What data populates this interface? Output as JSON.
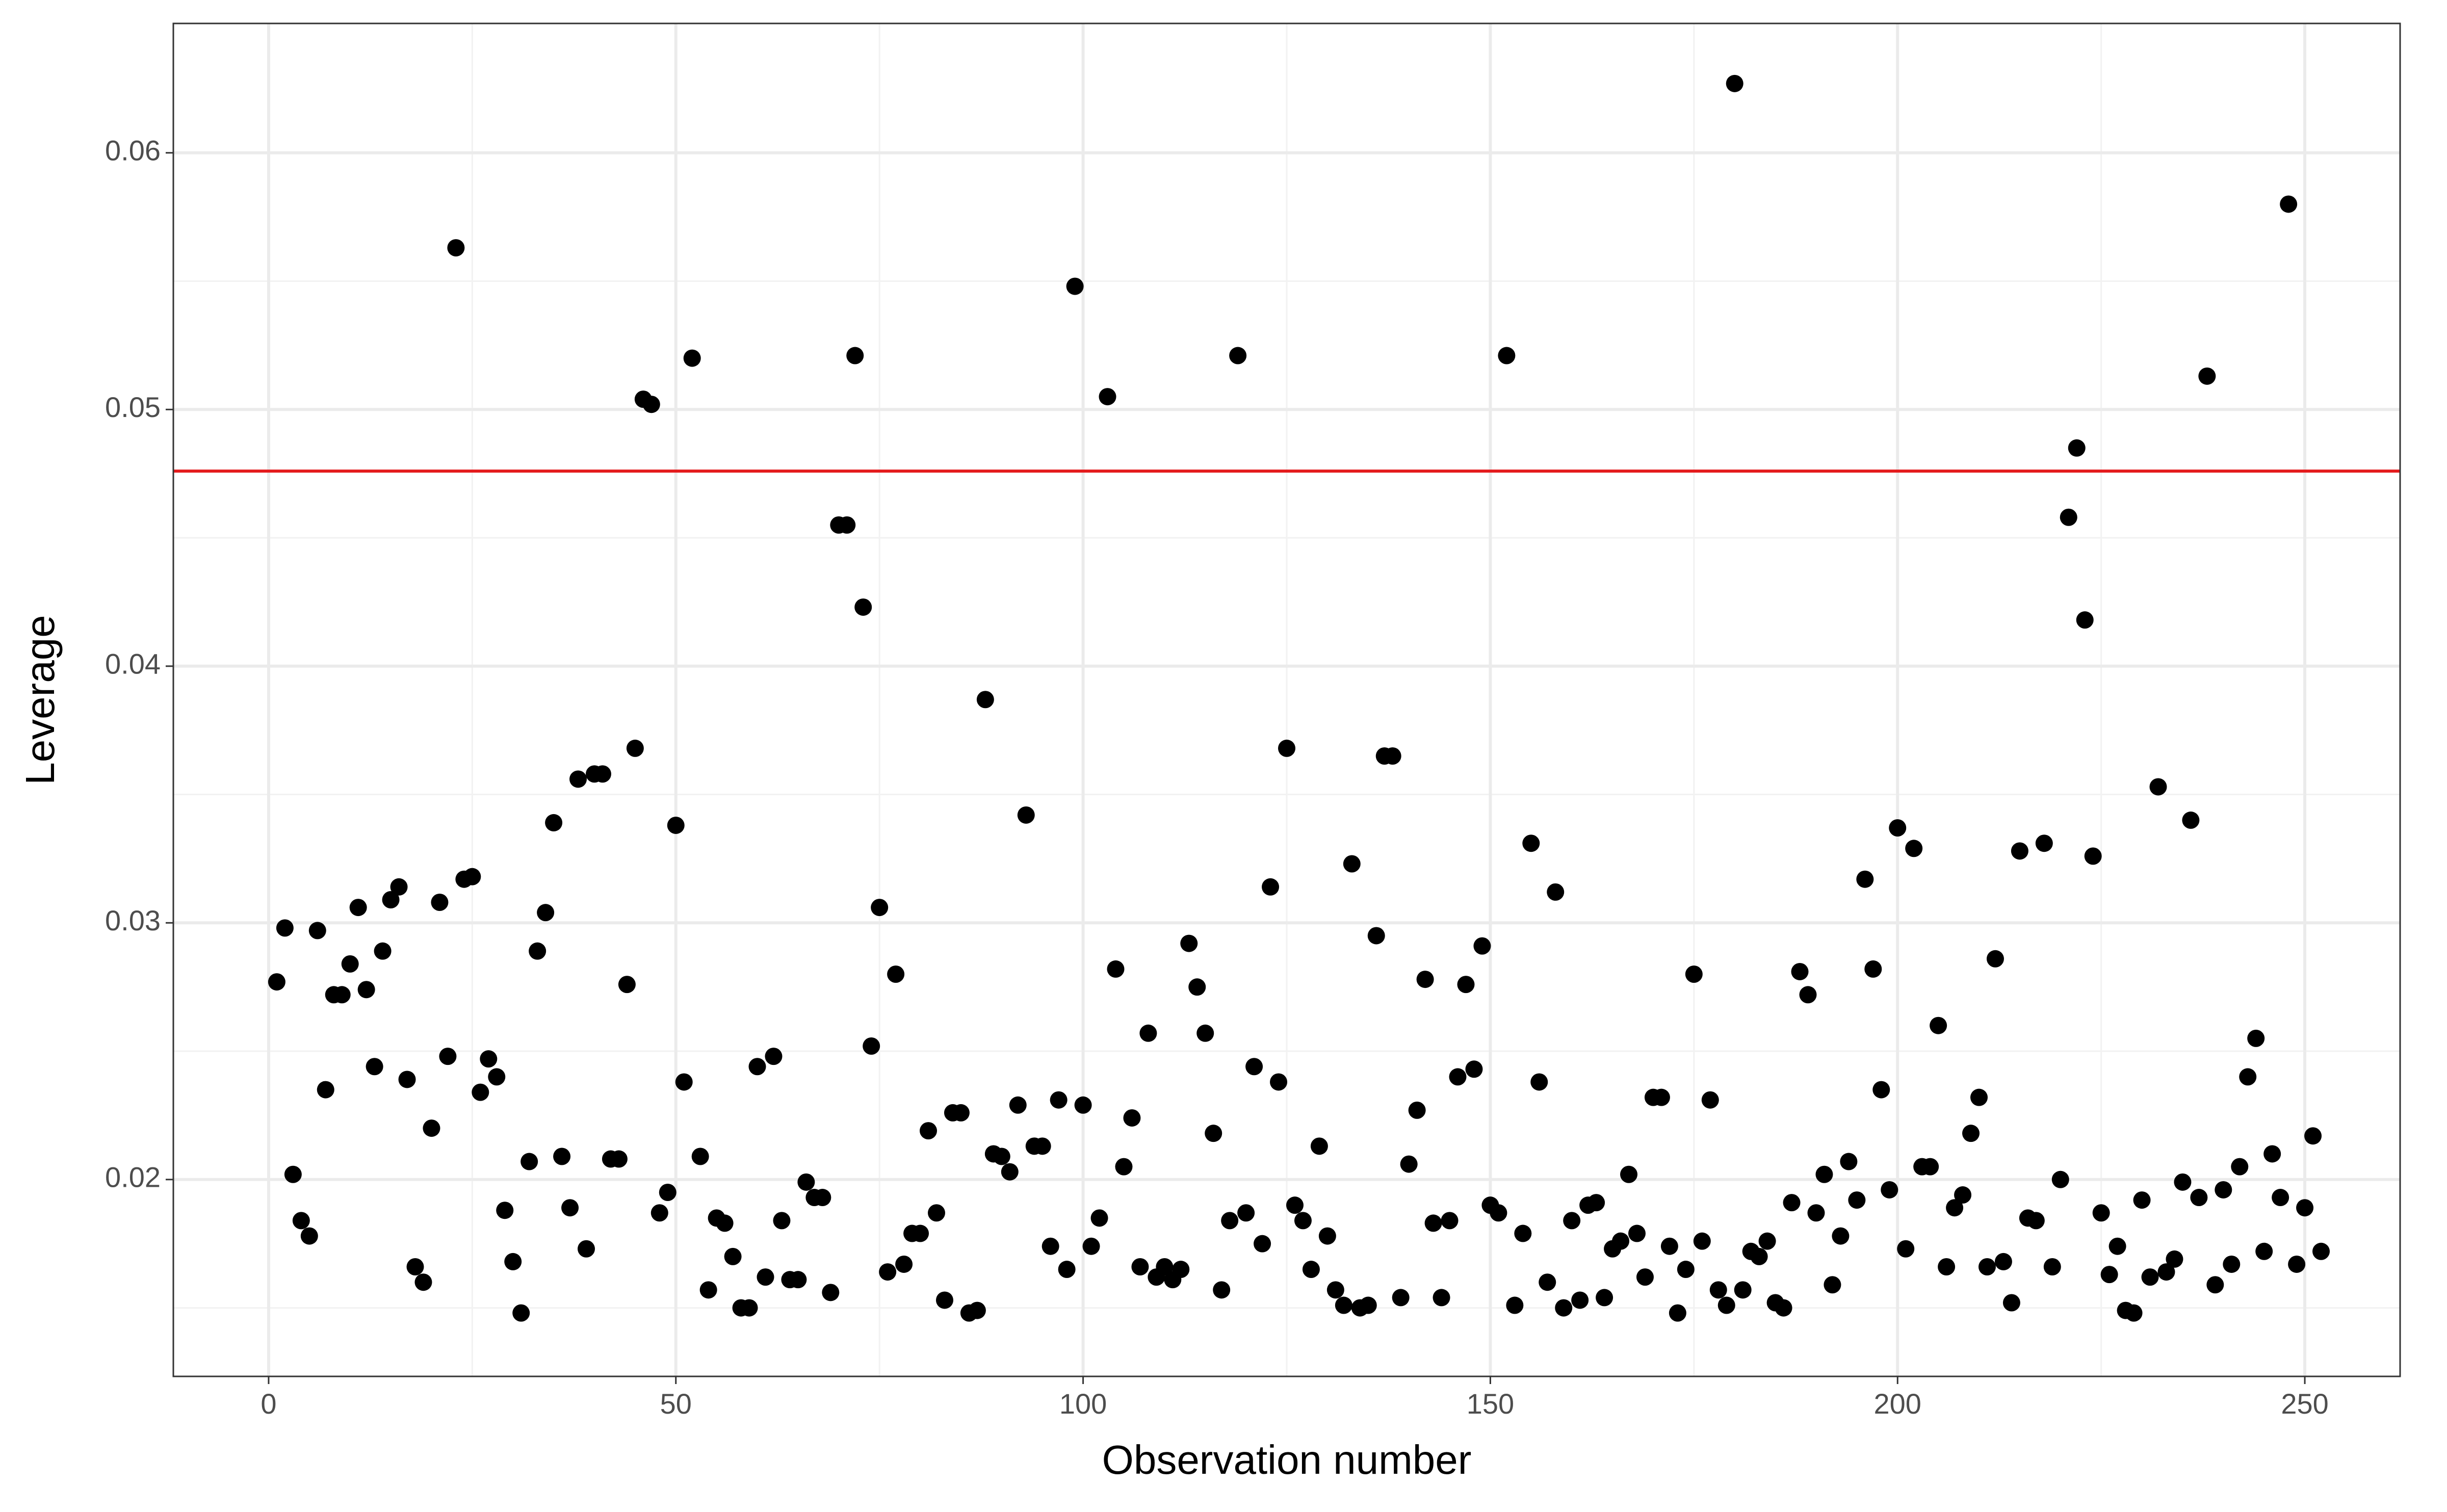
{
  "chart_data": {
    "type": "scatter",
    "xlabel": "Observation number",
    "ylabel": "Leverage",
    "x": [
      1,
      2,
      3,
      4,
      5,
      6,
      7,
      8,
      9,
      10,
      11,
      12,
      13,
      14,
      15,
      16,
      17,
      18,
      19,
      20,
      21,
      22,
      23,
      24,
      25,
      26,
      27,
      28,
      29,
      30,
      31,
      32,
      33,
      34,
      35,
      36,
      37,
      38,
      39,
      40,
      41,
      42,
      43,
      44,
      45,
      46,
      47,
      48,
      49,
      50,
      51,
      52,
      53,
      54,
      55,
      56,
      57,
      58,
      59,
      60,
      61,
      62,
      63,
      64,
      65,
      66,
      67,
      68,
      69,
      70,
      71,
      72,
      73,
      74,
      75,
      76,
      77,
      78,
      79,
      80,
      81,
      82,
      83,
      84,
      85,
      86,
      87,
      88,
      89,
      90,
      91,
      92,
      93,
      94,
      95,
      96,
      97,
      98,
      99,
      100,
      101,
      102,
      103,
      104,
      105,
      106,
      107,
      108,
      109,
      110,
      111,
      112,
      113,
      114,
      115,
      116,
      117,
      118,
      119,
      120,
      121,
      122,
      123,
      124,
      125,
      126,
      127,
      128,
      129,
      130,
      131,
      132,
      133,
      134,
      135,
      136,
      137,
      138,
      139,
      140,
      141,
      142,
      143,
      144,
      145,
      146,
      147,
      148,
      149,
      150,
      151,
      152,
      153,
      154,
      155,
      156,
      157,
      158,
      159,
      160,
      161,
      162,
      163,
      164,
      165,
      166,
      167,
      168,
      169,
      170,
      171,
      172,
      173,
      174,
      175,
      176,
      177,
      178,
      179,
      180,
      181,
      182,
      183,
      184,
      185,
      186,
      187,
      188,
      189,
      190,
      191,
      192,
      193,
      194,
      195,
      196,
      197,
      198,
      199,
      200,
      201,
      202,
      203,
      204,
      205,
      206,
      207,
      208,
      209,
      210,
      211,
      212,
      213,
      214,
      215,
      216,
      217,
      218,
      219,
      220,
      221,
      222,
      223,
      224,
      225,
      226,
      227,
      228,
      229,
      230,
      231,
      232,
      233,
      234,
      235,
      236,
      237,
      238,
      239,
      240,
      241,
      242,
      243,
      244,
      245,
      246,
      247,
      248,
      249,
      250,
      251,
      252
    ],
    "values": [
      0.0277,
      0.0298,
      0.0202,
      0.0184,
      0.0178,
      0.0297,
      0.0235,
      0.0272,
      0.0272,
      0.0284,
      0.0306,
      0.0274,
      0.0244,
      0.0289,
      0.0309,
      0.0314,
      0.0239,
      0.0166,
      0.016,
      0.022,
      0.0308,
      0.0248,
      0.0563,
      0.0317,
      0.0318,
      0.0234,
      0.0247,
      0.024,
      0.0188,
      0.0168,
      0.0148,
      0.0207,
      0.0289,
      0.0304,
      0.0339,
      0.0209,
      0.0189,
      0.0356,
      0.0173,
      0.0358,
      0.0358,
      0.0208,
      0.0208,
      0.0276,
      0.0368,
      0.0504,
      0.0502,
      0.0187,
      0.0195,
      0.0338,
      0.0238,
      0.052,
      0.0209,
      0.0157,
      0.0185,
      0.0183,
      0.017,
      0.015,
      0.015,
      0.0244,
      0.0162,
      0.0248,
      0.0184,
      0.0161,
      0.0161,
      0.0199,
      0.0193,
      0.0193,
      0.0156,
      0.0455,
      0.0455,
      0.0521,
      0.0423,
      0.0252,
      0.0306,
      0.0164,
      0.028,
      0.0167,
      0.0179,
      0.0179,
      0.0219,
      0.0187,
      0.0153,
      0.0226,
      0.0226,
      0.0148,
      0.0149,
      0.0387,
      0.021,
      0.0209,
      0.0203,
      0.0229,
      0.0342,
      0.0213,
      0.0213,
      0.0174,
      0.0231,
      0.0165,
      0.0548,
      0.0229,
      0.0174,
      0.0185,
      0.0505,
      0.0282,
      0.0205,
      0.0224,
      0.0166,
      0.0257,
      0.0162,
      0.0166,
      0.0161,
      0.0165,
      0.0292,
      0.0275,
      0.0257,
      0.0218,
      0.0157,
      0.0184,
      0.0521,
      0.0187,
      0.0244,
      0.0175,
      0.0314,
      0.0238,
      0.0368,
      0.019,
      0.0184,
      0.0165,
      0.0213,
      0.0178,
      0.0157,
      0.0151,
      0.0323,
      0.015,
      0.0151,
      0.0295,
      0.0365,
      0.0365,
      0.0154,
      0.0206,
      0.0227,
      0.0278,
      0.0183,
      0.0154,
      0.0184,
      0.024,
      0.0276,
      0.0243,
      0.0291,
      0.019,
      0.0187,
      0.0521,
      0.0151,
      0.0179,
      0.0331,
      0.0238,
      0.016,
      0.0312,
      0.015,
      0.0184,
      0.0153,
      0.019,
      0.0191,
      0.0154,
      0.0173,
      0.0176,
      0.0202,
      0.0179,
      0.0162,
      0.0232,
      0.0232,
      0.0174,
      0.0148,
      0.0165,
      0.028,
      0.0176,
      0.0231,
      0.0157,
      0.0151,
      0.0627,
      0.0157,
      0.0172,
      0.017,
      0.0176,
      0.0152,
      0.015,
      0.0191,
      0.0281,
      0.0272,
      0.0187,
      0.0202,
      0.0159,
      0.0178,
      0.0207,
      0.0192,
      0.0317,
      0.0282,
      0.0235,
      0.0196,
      0.0337,
      0.0173,
      0.0329,
      0.0205,
      0.0205,
      0.026,
      0.0166,
      0.0189,
      0.0194,
      0.0218,
      0.0232,
      0.0166,
      0.0286,
      0.0168,
      0.0152,
      0.0328,
      0.0185,
      0.0184,
      0.0331,
      0.0166,
      0.02,
      0.0458,
      0.0485,
      0.0418,
      0.0326,
      0.0187,
      0.0163,
      0.0174,
      0.0149,
      0.0148,
      0.0192,
      0.0162,
      0.0353,
      0.0164,
      0.0169,
      0.0199,
      0.034,
      0.0193,
      0.0513,
      0.0159,
      0.0196,
      0.0167,
      0.0205,
      0.024,
      0.0255,
      0.0172,
      0.021,
      0.0193,
      0.058,
      0.0167,
      0.0189,
      0.0217,
      0.0172
    ],
    "color": "#000000",
    "reference_line": 0.0476,
    "reference_line_color": "#e41a1c",
    "xlim": [
      -11.7,
      261.7
    ],
    "ylim": [
      0.01233,
      0.06504
    ],
    "xticks": [
      0,
      50,
      100,
      150,
      200,
      250
    ],
    "yticks": [
      0.02,
      0.03,
      0.04,
      0.05,
      0.06
    ],
    "xminor": [
      25,
      75,
      125,
      175,
      225
    ],
    "yminor": [
      0.015,
      0.025,
      0.035,
      0.045,
      0.055
    ],
    "grid": true
  }
}
